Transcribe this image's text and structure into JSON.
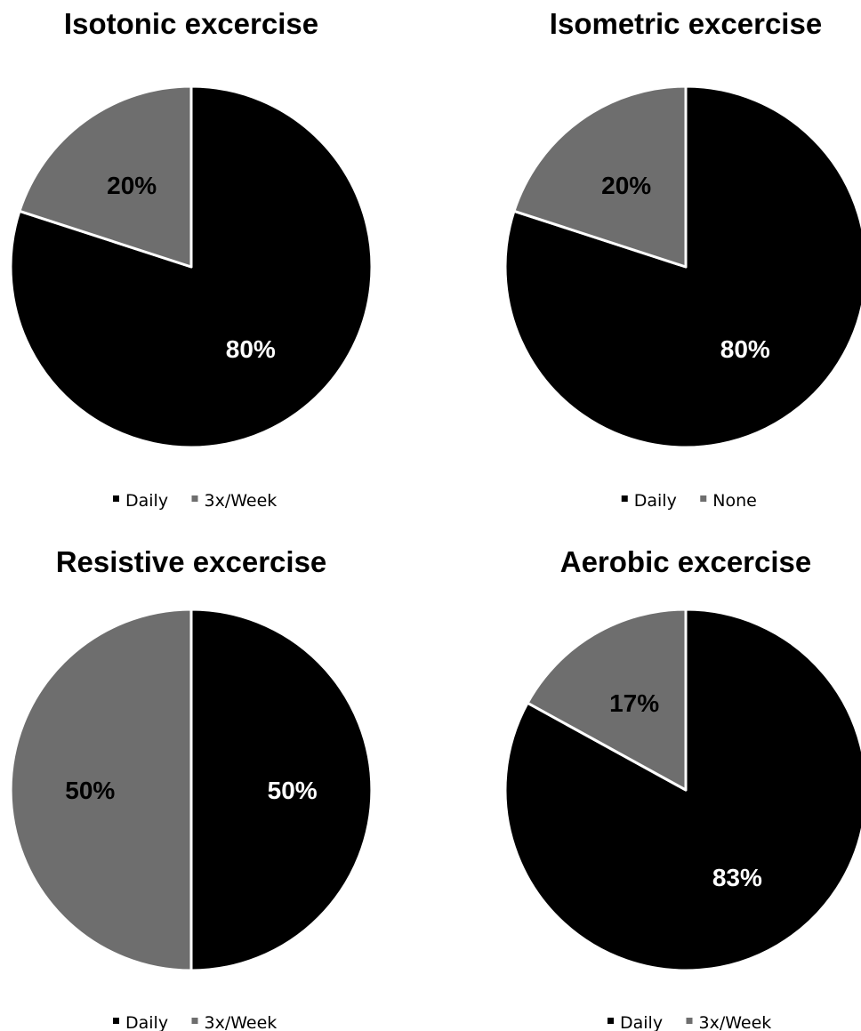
{
  "chart_data": [
    {
      "type": "pie",
      "title": "Isotonic excercise",
      "slices": [
        {
          "label": "Daily",
          "value": 80,
          "display": "80%",
          "color": "#000000",
          "label_color": "#ffffff"
        },
        {
          "label": "3x/Week",
          "value": 20,
          "display": "20%",
          "color": "#6e6e6e",
          "label_color": "#000000"
        }
      ],
      "legend": [
        "Daily",
        "3x/Week"
      ],
      "legend_position": "bottom"
    },
    {
      "type": "pie",
      "title": "Isometric excercise",
      "slices": [
        {
          "label": "Daily",
          "value": 80,
          "display": "80%",
          "color": "#000000",
          "label_color": "#ffffff"
        },
        {
          "label": "None",
          "value": 20,
          "display": "20%",
          "color": "#6e6e6e",
          "label_color": "#000000"
        }
      ],
      "legend": [
        "Daily",
        "None"
      ],
      "legend_position": "bottom"
    },
    {
      "type": "pie",
      "title": "Resistive excercise",
      "slices": [
        {
          "label": "Daily",
          "value": 50,
          "display": "50%",
          "color": "#000000",
          "label_color": "#ffffff"
        },
        {
          "label": "3x/Week",
          "value": 50,
          "display": "50%",
          "color": "#6e6e6e",
          "label_color": "#000000"
        }
      ],
      "legend": [
        "Daily",
        "3x/Week"
      ],
      "legend_position": "bottom"
    },
    {
      "type": "pie",
      "title": "Aerobic excercise",
      "slices": [
        {
          "label": "Daily",
          "value": 83,
          "display": "83%",
          "color": "#000000",
          "label_color": "#ffffff"
        },
        {
          "label": "3x/Week",
          "value": 17,
          "display": "17%",
          "color": "#6e6e6e",
          "label_color": "#000000"
        }
      ],
      "legend": [
        "Daily",
        "3x/Week"
      ],
      "legend_position": "bottom"
    }
  ]
}
